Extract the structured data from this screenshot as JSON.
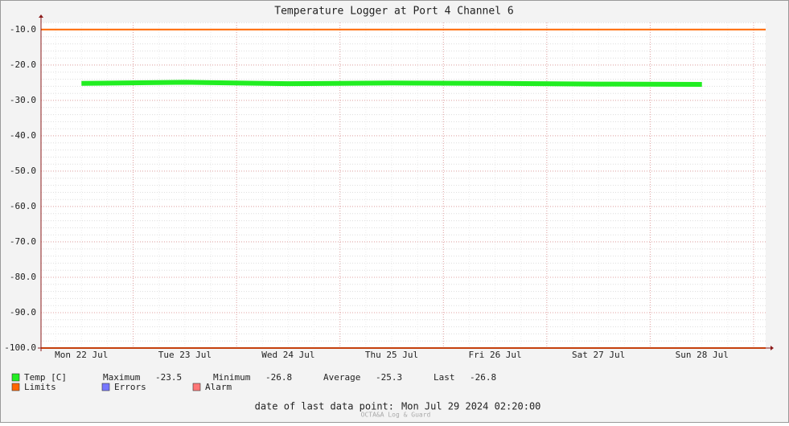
{
  "chart_data": {
    "type": "line",
    "title": "Temperature Logger at Port 4 Channel 6",
    "categories": [
      "Mon 22 Jul",
      "Tue 23 Jul",
      "Wed 24 Jul",
      "Thu 25 Jul",
      "Fri 26 Jul",
      "Sat 27 Jul",
      "Sun 28 Jul"
    ],
    "series": [
      {
        "name": "Temp [C]",
        "color": "#22ee22",
        "values": [
          -25.2,
          -24.9,
          -25.3,
          -25.1,
          -25.2,
          -25.4,
          -25.5
        ]
      }
    ],
    "limits": {
      "name": "Limits",
      "color": "#ff6600",
      "values": [
        -10,
        -100
      ]
    },
    "legend_extra": [
      {
        "name": "Errors",
        "color": "#7777ff"
      },
      {
        "name": "Alarm",
        "color": "#ff7777"
      }
    ],
    "stats": [
      {
        "label": "Maximum",
        "value": -23.5
      },
      {
        "label": "Minimum",
        "value": -26.8
      },
      {
        "label": "Average",
        "value": -25.3
      },
      {
        "label": "Last",
        "value": -26.8
      }
    ],
    "ylim": [
      -100,
      -8
    ],
    "yticks": [
      {
        "value": -10,
        "label": "-10.0"
      },
      {
        "value": -20,
        "label": "-20.0"
      },
      {
        "value": -30,
        "label": "-30.0"
      },
      {
        "value": -40,
        "label": "-40.0"
      },
      {
        "value": -50,
        "label": "-50.0"
      },
      {
        "value": -60,
        "label": "-60.0"
      },
      {
        "value": -70,
        "label": "-70.0"
      },
      {
        "value": -80,
        "label": "-80.0"
      },
      {
        "value": -90,
        "label": "-90.0"
      },
      {
        "value": -100,
        "label": "-100.0"
      }
    ],
    "grid": true,
    "footer_label": "date of last data point:",
    "footer_value": "Mon Jul 29 2024 02:20:00",
    "watermark": "OCTA&A Log & Guard"
  }
}
